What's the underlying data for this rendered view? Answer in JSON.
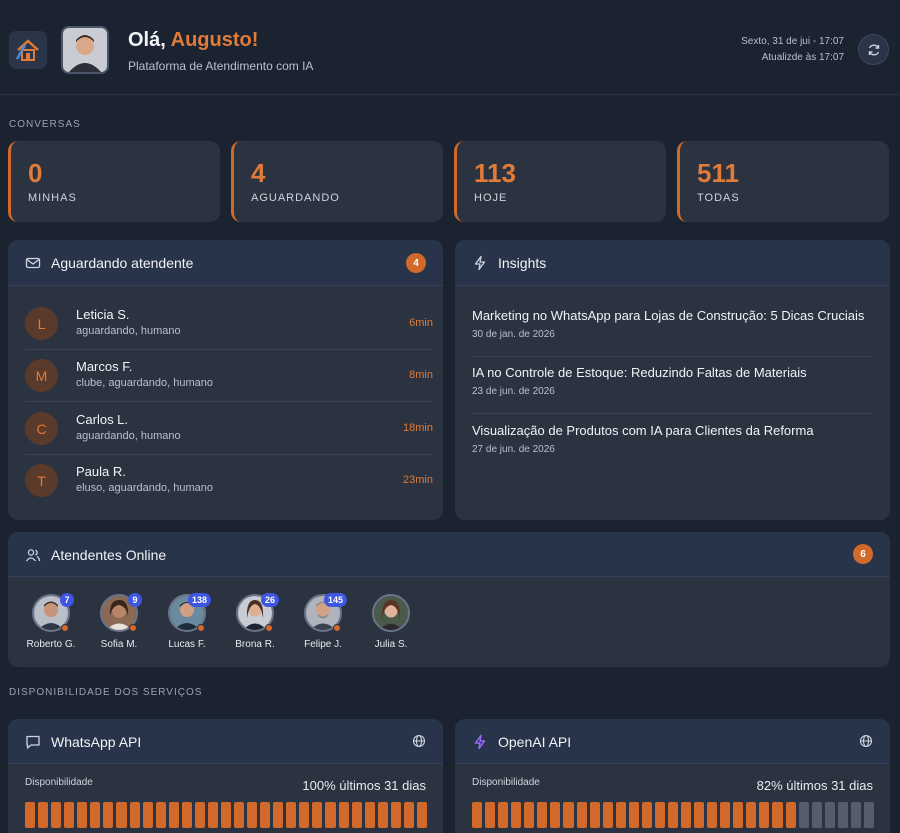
{
  "header": {
    "greeting": "Olá,",
    "user_name": "Augusto!",
    "subtitle": "Plataforma de Atendimento com IA",
    "date": "Sexto, 31 de jui - 17:07",
    "updated": "Atualizde às 17:07"
  },
  "sections": {
    "conversas": "CONVERSAS",
    "disponibilidade": "DISPONIBILIDADE DOS SERVIÇOS"
  },
  "stats": [
    {
      "value": "0",
      "label": "MINHAS"
    },
    {
      "value": "4",
      "label": "AGUARDANDO"
    },
    {
      "value": "113",
      "label": "HOJE"
    },
    {
      "value": "511",
      "label": "TODAS"
    }
  ],
  "waiting": {
    "title": "Aguardando atendente",
    "count": "4",
    "items": [
      {
        "initial": "L",
        "name": "Leticia S.",
        "tags": "aguardando, humano",
        "time": "6min"
      },
      {
        "initial": "M",
        "name": "Marcos F.",
        "tags": "clube, aguardando, humano",
        "time": "8min"
      },
      {
        "initial": "C",
        "name": "Carlos L.",
        "tags": "aguardando, humano",
        "time": "18min"
      },
      {
        "initial": "T",
        "name": "Paula R.",
        "tags": "eluso, aguardando, humano",
        "time": "23min"
      }
    ]
  },
  "insights": {
    "title": "Insights",
    "items": [
      {
        "title": "Marketing no WhatsApp para Lojas de Construção: 5 Dicas Cruciais",
        "date": "30 de jan. de 2026"
      },
      {
        "title": "IA no Controle de Estoque: Reduzindo Faltas de Materiais",
        "date": "23 de jun. de 2026"
      },
      {
        "title": "Visualização de Produtos com IA para Clientes da Reforma",
        "date": "27 de jun. de 2026"
      }
    ]
  },
  "agents": {
    "title": "Atendentes Online",
    "count": "6",
    "items": [
      {
        "name": "Roberto G.",
        "count": "7"
      },
      {
        "name": "Sofia M.",
        "count": "9"
      },
      {
        "name": "Lucas F.",
        "count": "138"
      },
      {
        "name": "Brona R.",
        "count": "26"
      },
      {
        "name": "Felipe J.",
        "count": "145"
      },
      {
        "name": "Julia S.",
        "count": ""
      }
    ]
  },
  "services": [
    {
      "name": "WhatsApp API",
      "label": "Disponibilidade",
      "summary": "100% últimos 31 dias",
      "uptime_fraction": 1.0,
      "days": 31
    },
    {
      "name": "OpenAI API",
      "label": "Disponibilidade",
      "summary": "82% últimos 31 dias",
      "uptime_fraction": 0.82,
      "days": 31
    }
  ],
  "colors": {
    "accent": "#e07b39",
    "background": "#1b2230",
    "card": "#2b3240",
    "badge_blue": "#3f56e0",
    "bar_off": "#555d6b"
  }
}
